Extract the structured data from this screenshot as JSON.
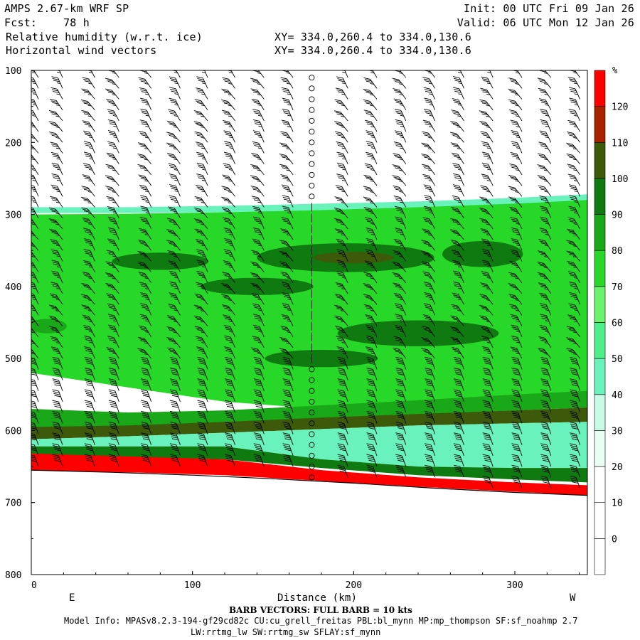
{
  "header": {
    "line1_left": "AMPS 2.67-km WRF SP",
    "line2_left": "Fcst:    78 h",
    "line3_left": "Relative humidity (w.r.t. ice)",
    "line4_left": "Horizontal wind vectors",
    "line1_right": "Init: 00 UTC Fri 09 Jan 26",
    "line2_right": "Valid: 06 UTC Mon 12 Jan 26",
    "line3_mid": "XY= 334.0,260.4 to 334.0,130.6",
    "line4_mid": "XY= 334.0,260.4 to 334.0,130.6"
  },
  "footer": {
    "barb_note": "BARB VECTORS:  FULL BARB = 10 kts",
    "model_info": "Model Info: MPASv8.2.3-194-gf29cd82c CU:cu_grell_freitas PBL:bl_mynn MP:mp_thompson SF:sf_noahmp 2.7",
    "model_info_2": "LW:rrtmg_lw SW:rrtmg_sw SFLAY:sf_mynn"
  },
  "chart_data": {
    "type": "heatmap",
    "title": "Relative humidity (w.r.t. ice)",
    "overlay": "Horizontal wind vectors",
    "xlabel": "Distance (km)",
    "ylabel": "",
    "x_end_labels": [
      "E",
      "W"
    ],
    "xlim": [
      0,
      345
    ],
    "ylim": [
      800,
      100
    ],
    "xticks": [
      0,
      100,
      200,
      300
    ],
    "yticks": [
      100,
      200,
      300,
      400,
      500,
      600,
      700,
      800
    ],
    "colorbar": {
      "unit": "%",
      "levels": [
        0,
        10,
        20,
        30,
        40,
        50,
        60,
        70,
        80,
        90,
        100,
        110,
        120
      ],
      "colors": [
        "#ffffff",
        "#ffffff",
        "#ffffff",
        "#e8fff4",
        "#c8fbe6",
        "#69f2bb",
        "#4eef8a",
        "#6cf36c",
        "#28d828",
        "#18a818",
        "#0f7a0f",
        "#3d5a0a",
        "#a82200",
        "#ff0000"
      ]
    },
    "terrain_pressure": [
      [
        0,
        655
      ],
      [
        50,
        658
      ],
      [
        100,
        662
      ],
      [
        150,
        667
      ],
      [
        200,
        673
      ],
      [
        250,
        680
      ],
      [
        300,
        686
      ],
      [
        345,
        690
      ]
    ],
    "layers": [
      {
        "name": "upper-edge",
        "rh": 45,
        "x": [
          0,
          60,
          120,
          180,
          240,
          300,
          345
        ],
        "top": [
          290,
          290,
          288,
          285,
          282,
          277,
          272
        ],
        "bottom": [
          298,
          298,
          297,
          295,
          292,
          288,
          284
        ]
      },
      {
        "name": "upper-moist",
        "rh": 75,
        "x": [
          0,
          60,
          120,
          180,
          240,
          300,
          345
        ],
        "top": [
          300,
          299,
          297,
          294,
          290,
          285,
          280
        ],
        "bottom": [
          520,
          540,
          560,
          570,
          565,
          555,
          548
        ]
      },
      {
        "name": "lower-moist",
        "rh": 85,
        "x": [
          0,
          60,
          120,
          180,
          240,
          300,
          345
        ],
        "top": [
          570,
          575,
          572,
          565,
          558,
          550,
          545
        ],
        "bottom": [
          605,
          600,
          592,
          585,
          578,
          572,
          568
        ]
      },
      {
        "name": "saturated-band",
        "rh": 105,
        "x": [
          0,
          60,
          120,
          180,
          240,
          300,
          345
        ],
        "top": [
          595,
          593,
          588,
          582,
          577,
          572,
          568
        ],
        "bottom": [
          612,
          608,
          603,
          598,
          593,
          590,
          588
        ]
      },
      {
        "name": "dry-slot",
        "rh": 40,
        "x": [
          0,
          60,
          120,
          180,
          240,
          300,
          345
        ],
        "top": [
          612,
          608,
          603,
          598,
          593,
          590,
          588
        ],
        "bottom": [
          622,
          622,
          622,
          640,
          650,
          652,
          652
        ]
      },
      {
        "name": "near-surface",
        "rh": 90,
        "x": [
          0,
          60,
          120,
          180,
          240,
          300,
          345
        ],
        "top": [
          622,
          622,
          622,
          640,
          650,
          652,
          652
        ],
        "bottom": [
          635,
          637,
          640,
          652,
          662,
          668,
          672
        ]
      },
      {
        "name": "surface-supersat",
        "rh": 125,
        "x": [
          0,
          60,
          120,
          180,
          240,
          300,
          345
        ],
        "top": [
          632,
          636,
          640,
          655,
          665,
          672,
          676
        ],
        "bottom": [
          655,
          658,
          662,
          670,
          678,
          685,
          690
        ]
      }
    ],
    "moist_cores": [
      {
        "rh": 95,
        "cx": 80,
        "cy": 365,
        "rx": 30,
        "ry": 12
      },
      {
        "rh": 95,
        "cx": 195,
        "cy": 360,
        "rx": 55,
        "ry": 20
      },
      {
        "rh": 95,
        "cx": 140,
        "cy": 400,
        "rx": 35,
        "ry": 12
      },
      {
        "rh": 95,
        "cx": 280,
        "cy": 355,
        "rx": 25,
        "ry": 18
      },
      {
        "rh": 95,
        "cx": 240,
        "cy": 465,
        "rx": 50,
        "ry": 18
      },
      {
        "rh": 95,
        "cx": 180,
        "cy": 500,
        "rx": 35,
        "ry": 12
      },
      {
        "rh": 85,
        "cx": 10,
        "cy": 455,
        "rx": 12,
        "ry": 10
      },
      {
        "rh": 100,
        "cx": 200,
        "cy": 360,
        "rx": 25,
        "ry": 8
      }
    ],
    "wind": {
      "columns_km": [
        0,
        15,
        35,
        50,
        70,
        88,
        105,
        122,
        140,
        158,
        174,
        192,
        210,
        228,
        246,
        264,
        282,
        300,
        318,
        336
      ],
      "levels_hpa": [
        110,
        125,
        140,
        155,
        170,
        185,
        200,
        215,
        230,
        245,
        260,
        275,
        290,
        305,
        320,
        335,
        350,
        365,
        380,
        395,
        410,
        425,
        440,
        455,
        470,
        485,
        500,
        515,
        530,
        545,
        560,
        575,
        590,
        605,
        620,
        635,
        650,
        665,
        680
      ],
      "speed_kts_upper": 25,
      "speed_kts_lower": 40,
      "calm_column_km": 174
    }
  }
}
